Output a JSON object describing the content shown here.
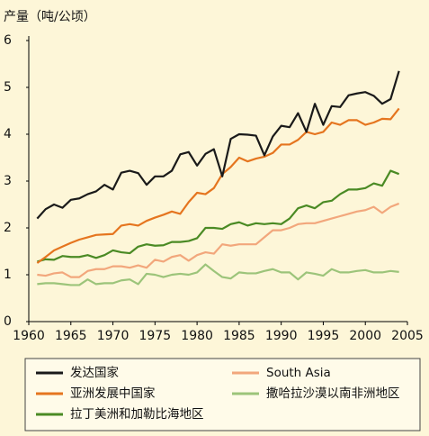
{
  "chart_data": {
    "type": "line",
    "title": "产量（吨/公顷）",
    "x": [
      1961,
      1962,
      1963,
      1964,
      1965,
      1966,
      1967,
      1968,
      1969,
      1970,
      1971,
      1972,
      1973,
      1974,
      1975,
      1976,
      1977,
      1978,
      1979,
      1980,
      1981,
      1982,
      1983,
      1984,
      1985,
      1986,
      1987,
      1988,
      1989,
      1990,
      1991,
      1992,
      1993,
      1994,
      1995,
      1996,
      1997,
      1998,
      1999,
      2000,
      2001,
      2002,
      2003,
      2004
    ],
    "series": [
      {
        "name": "发达国家",
        "color": "#1a1a1a",
        "values": [
          2.2,
          2.4,
          2.5,
          2.43,
          2.6,
          2.63,
          2.72,
          2.78,
          2.92,
          2.82,
          3.18,
          3.22,
          3.17,
          2.92,
          3.1,
          3.1,
          3.22,
          3.57,
          3.62,
          3.33,
          3.58,
          3.68,
          3.1,
          3.9,
          4.0,
          3.99,
          3.97,
          3.55,
          3.95,
          4.18,
          4.15,
          4.45,
          4.05,
          4.65,
          4.2,
          4.6,
          4.58,
          4.83,
          4.87,
          4.9,
          4.82,
          4.65,
          4.75,
          5.35
        ]
      },
      {
        "name": "亚洲发展中国家",
        "color": "#e5751f",
        "values": [
          1.25,
          1.38,
          1.52,
          1.6,
          1.68,
          1.75,
          1.8,
          1.85,
          1.86,
          1.87,
          2.05,
          2.08,
          2.05,
          2.15,
          2.22,
          2.28,
          2.35,
          2.3,
          2.55,
          2.75,
          2.72,
          2.85,
          3.15,
          3.3,
          3.5,
          3.42,
          3.48,
          3.52,
          3.6,
          3.78,
          3.78,
          3.88,
          4.05,
          4.0,
          4.05,
          4.25,
          4.2,
          4.3,
          4.3,
          4.2,
          4.25,
          4.33,
          4.32,
          4.55
        ]
      },
      {
        "name": "拉丁美洲和加勒比海地区",
        "color": "#4a8a24",
        "values": [
          1.28,
          1.33,
          1.32,
          1.4,
          1.38,
          1.38,
          1.42,
          1.36,
          1.42,
          1.52,
          1.48,
          1.46,
          1.6,
          1.65,
          1.62,
          1.63,
          1.7,
          1.7,
          1.72,
          1.78,
          2.0,
          2.0,
          1.98,
          2.08,
          2.12,
          2.05,
          2.1,
          2.08,
          2.1,
          2.08,
          2.2,
          2.42,
          2.48,
          2.42,
          2.55,
          2.58,
          2.72,
          2.82,
          2.82,
          2.85,
          2.95,
          2.9,
          3.22,
          3.15
        ]
      },
      {
        "name": "South Asia",
        "color": "#f2a77c",
        "values": [
          1.0,
          0.98,
          1.03,
          1.05,
          0.95,
          0.95,
          1.08,
          1.12,
          1.12,
          1.18,
          1.18,
          1.15,
          1.2,
          1.15,
          1.32,
          1.28,
          1.38,
          1.42,
          1.3,
          1.42,
          1.48,
          1.45,
          1.65,
          1.62,
          1.65,
          1.65,
          1.65,
          1.8,
          1.95,
          1.95,
          2.0,
          2.08,
          2.1,
          2.1,
          2.15,
          2.2,
          2.25,
          2.3,
          2.35,
          2.38,
          2.45,
          2.32,
          2.45,
          2.52
        ]
      },
      {
        "name": "撒哈拉沙漠以南非洲地区",
        "color": "#9cc47a",
        "values": [
          0.8,
          0.82,
          0.82,
          0.8,
          0.78,
          0.78,
          0.9,
          0.8,
          0.82,
          0.82,
          0.88,
          0.9,
          0.8,
          1.02,
          1.0,
          0.95,
          1.0,
          1.02,
          1.0,
          1.05,
          1.22,
          1.08,
          0.95,
          0.92,
          1.05,
          1.03,
          1.03,
          1.08,
          1.12,
          1.05,
          1.05,
          0.9,
          1.05,
          1.02,
          0.98,
          1.12,
          1.05,
          1.05,
          1.08,
          1.1,
          1.05,
          1.05,
          1.08,
          1.06
        ]
      }
    ],
    "xlim": [
      1960,
      2005
    ],
    "xticks": [
      1960,
      1965,
      1970,
      1975,
      1980,
      1985,
      1990,
      1995,
      2000,
      2005
    ],
    "ylim": [
      0,
      6
    ],
    "yticks": [
      0,
      1,
      2,
      3,
      4,
      5,
      6
    ],
    "grid": false
  }
}
